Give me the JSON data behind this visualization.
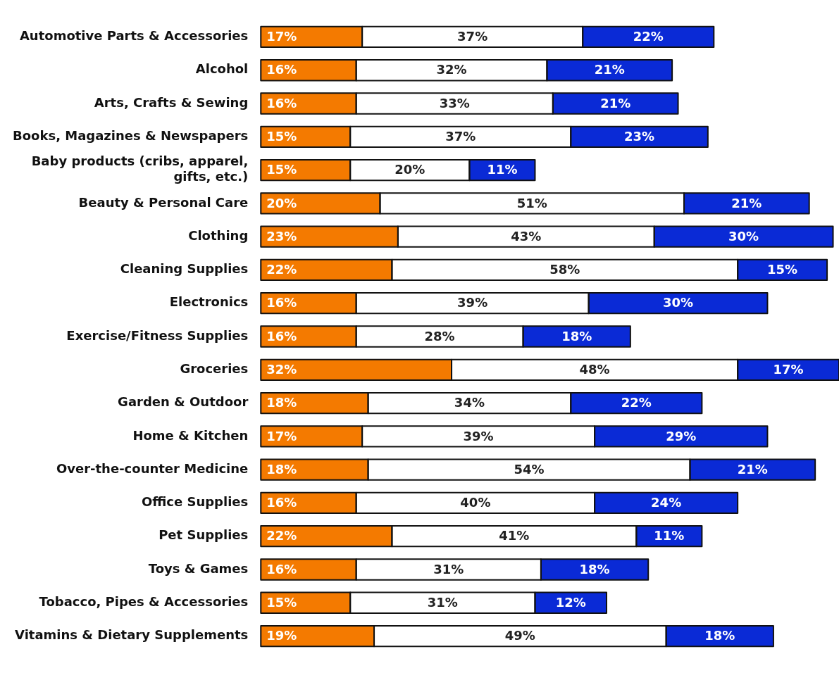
{
  "chart_data": {
    "type": "bar",
    "orientation": "horizontal",
    "stacked": true,
    "tick_labels": "y",
    "xlim": [
      0,
      97
    ],
    "categories": [
      "Automotive Parts & Accessories",
      "Alcohol",
      "Arts, Crafts & Sewing",
      "Books, Magazines & Newspapers",
      "Baby products (cribs, apparel, gifts, etc.)",
      "Beauty & Personal Care",
      "Clothing",
      "Cleaning Supplies",
      "Electronics",
      "Exercise/Fitness Supplies",
      "Groceries",
      "Garden & Outdoor",
      "Home & Kitchen",
      "Over-the-counter Medicine",
      "Office Supplies",
      "Pet Supplies",
      "Toys & Games",
      "Tobacco, Pipes & Accessories",
      "Vitamins & Dietary Supplements"
    ],
    "series": [
      {
        "color": "#f47a00",
        "values": [
          17,
          16,
          16,
          15,
          15,
          20,
          23,
          22,
          16,
          16,
          32,
          18,
          17,
          18,
          16,
          22,
          16,
          15,
          19
        ],
        "value_labels": [
          "17%",
          "16%",
          "16%",
          "15%",
          "15%",
          "20%",
          "23%",
          "22%",
          "16%",
          "16%",
          "32%",
          "18%",
          "17%",
          "18%",
          "16%",
          "22%",
          "16%",
          "15%",
          "19%"
        ]
      },
      {
        "color": "#ffffff",
        "values": [
          37,
          32,
          33,
          37,
          20,
          51,
          43,
          58,
          39,
          28,
          48,
          34,
          39,
          54,
          40,
          41,
          31,
          31,
          49
        ],
        "value_labels": [
          "37%",
          "32%",
          "33%",
          "37%",
          "20%",
          "51%",
          "43%",
          "58%",
          "39%",
          "28%",
          "48%",
          "34%",
          "39%",
          "54%",
          "40%",
          "41%",
          "31%",
          "31%",
          "49%"
        ]
      },
      {
        "color": "#0a2ad6",
        "values": [
          22,
          21,
          21,
          23,
          11,
          21,
          30,
          15,
          30,
          18,
          17,
          22,
          29,
          21,
          24,
          11,
          18,
          12,
          18
        ],
        "value_labels": [
          "22%",
          "21%",
          "21%",
          "23%",
          "11%",
          "21%",
          "30%",
          "15%",
          "30%",
          "18%",
          "17%",
          "22%",
          "29%",
          "21%",
          "24%",
          "11%",
          "18%",
          "12%",
          "18%"
        ]
      }
    ],
    "legend": false
  }
}
